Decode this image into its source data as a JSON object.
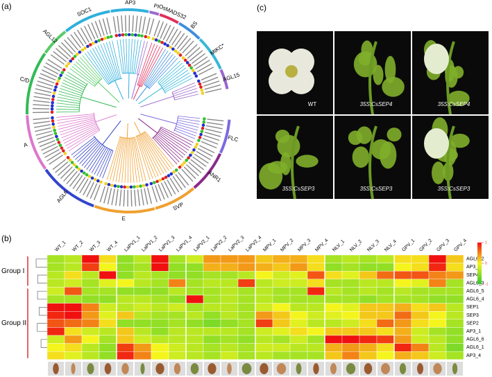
{
  "labels": {
    "a": "(a)",
    "b": "(b)",
    "c": "(c)"
  },
  "tree": {
    "clades": [
      "AP3",
      "PI",
      "OsMADS32",
      "BS",
      "MIKC*",
      "AGL15",
      "FLC",
      "ANR1",
      "SVP",
      "E",
      "AGL6",
      "A",
      "C/D",
      "AGL12",
      "SOC1"
    ]
  },
  "photos": [
    "WT",
    "35S:CsSEP4",
    "35S:CsSEP4",
    "35S:CsSEP3",
    "35S:CsSEP3",
    "35S:CsSEP3"
  ],
  "chart_data": {
    "type": "heatmap",
    "x": [
      "WT_1",
      "WT_2",
      "WT_3",
      "WT_4",
      "LaPV1_1",
      "LaPV1_2",
      "LaPV1_3",
      "LaPV1_4",
      "LaPV2_1",
      "LaPV2_2",
      "LaPV2_3",
      "LaPV2_4",
      "MPV_1",
      "MPV_2",
      "MPV_3",
      "MPV_4",
      "NLV_1",
      "NLV_2",
      "NLV_3",
      "NLV_4",
      "GPV_1",
      "GPV_2",
      "GPV_3",
      "GPV_4"
    ],
    "y": [
      "AGL6_2",
      "AP3_2",
      "SEP4",
      "AGL6_3",
      "AGL6_5",
      "AGL6_4",
      "SEP1",
      "SEP3",
      "SEP2",
      "AP3_1",
      "AGL6_6",
      "AGL6_1",
      "AP3_4"
    ],
    "groups": [
      {
        "name": "Group I",
        "rows": [
          0,
          3
        ]
      },
      {
        "name": "Group II",
        "rows": [
          4,
          12
        ]
      }
    ],
    "values": [
      [
        -0.4,
        -0.3,
        1,
        0.1,
        -0.5,
        -0.3,
        1,
        -0.4,
        -0.2,
        0.4,
        0.4,
        0.4,
        0.2,
        0.3,
        0.3,
        0.1,
        -0.4,
        -0.3,
        -0.4,
        -0.3,
        0.1,
        0.1,
        1,
        0.2
      ],
      [
        -0.4,
        -0.3,
        0.8,
        0,
        -0.5,
        -0.4,
        1,
        -0.5,
        -0.5,
        0.3,
        0.3,
        0.4,
        0.3,
        0.2,
        0.4,
        0.1,
        -0.5,
        -0.4,
        -0.5,
        -0.5,
        0,
        0.1,
        0.9,
        0.1
      ],
      [
        -0.3,
        0.1,
        -0.3,
        1,
        -0.5,
        -0.3,
        -0.4,
        -0.5,
        -0.5,
        -0.4,
        -0.4,
        -0.3,
        0,
        -0.2,
        -0.1,
        0.7,
        0.1,
        -0.1,
        0.2,
        0.6,
        0.7,
        0.7,
        0.5,
        0.4
      ],
      [
        -0.3,
        -0.2,
        -0.4,
        -0.1,
        0,
        -0.3,
        -0.4,
        0.5,
        -0.4,
        -0.3,
        -0.3,
        0.8,
        -0.3,
        -0.2,
        -0.2,
        0.1,
        -0.4,
        -0.4,
        -0.3,
        -0.3,
        0,
        -0.1,
        0.5,
        -0.4
      ],
      [
        -0.2,
        0.7,
        -0.4,
        -0.4,
        -0.5,
        -0.5,
        -0.5,
        -0.3,
        -0.4,
        -0.4,
        -0.3,
        -0.4,
        -0.3,
        -0.4,
        -0.4,
        0.9,
        -0.3,
        -0.4,
        -0.3,
        -0.4,
        -0.3,
        -0.4,
        -0.4,
        -0.4
      ],
      [
        -0.4,
        -0.4,
        -0.5,
        -0.5,
        -0.3,
        -0.3,
        -0.4,
        -0.5,
        1,
        -0.4,
        -0.3,
        -0.4,
        -0.3,
        -0.4,
        -0.4,
        -0.4,
        -0.4,
        -0.4,
        -0.5,
        -0.4,
        -0.4,
        -0.4,
        -0.5,
        -0.5
      ],
      [
        1,
        1,
        0.5,
        -0.2,
        -0.3,
        -0.2,
        -0.3,
        -0.2,
        -0.4,
        -0.3,
        -0.3,
        -0.4,
        -0.2,
        0,
        -0.3,
        -0.3,
        0,
        -0.1,
        0.2,
        0.2,
        0.3,
        0.1,
        0.2,
        -0.3
      ],
      [
        0.9,
        1,
        0.4,
        -0.1,
        0.2,
        -0.3,
        -0.4,
        -0.4,
        -0.3,
        -0.5,
        -0.3,
        -0.4,
        0.4,
        0.2,
        0,
        -0.2,
        -0.1,
        0,
        0.2,
        0.2,
        0.6,
        0.2,
        0,
        -0.3
      ],
      [
        0.7,
        0.6,
        0.5,
        0.1,
        -0.5,
        -0.5,
        -0.5,
        -0.4,
        -0.5,
        -0.6,
        -0.5,
        -0.4,
        0.8,
        0.2,
        -0.1,
        -0.3,
        -0.3,
        -0.2,
        0.1,
        0.6,
        0.4,
        0.1,
        0,
        -0.4
      ],
      [
        0.9,
        0.1,
        -0.2,
        -0.3,
        0.2,
        -0.3,
        -0.5,
        -0.3,
        -0.3,
        -0.3,
        -0.3,
        -0.4,
        -0.2,
        -0.1,
        0.1,
        0,
        0.2,
        0.2,
        0.2,
        0.1,
        0.3,
        -0.2,
        -0.4,
        -0.5
      ],
      [
        -0.2,
        0.4,
        0,
        -0.4,
        0.2,
        -0.2,
        -0.3,
        -0.3,
        -0.3,
        -0.5,
        -0.4,
        -0.5,
        -0.3,
        -0.4,
        -0.2,
        -0.4,
        1,
        1,
        0.9,
        0.8,
        0.4,
        -0.2,
        -0.3,
        -0.5
      ],
      [
        0,
        0.1,
        -0.3,
        -0.5,
        0.8,
        0.4,
        0,
        -0.2,
        -0.3,
        -0.4,
        -0.3,
        -0.4,
        -0.2,
        -0.2,
        -0.3,
        -0.3,
        0.3,
        0.4,
        0.3,
        0.1,
        0.9,
        0.5,
        -0.3,
        -0.6
      ],
      [
        0.1,
        -0.1,
        -0.3,
        -0.5,
        0.9,
        0.5,
        0,
        -0.2,
        -0.3,
        -0.4,
        -0.2,
        -0.4,
        -0.3,
        -0.4,
        -0.4,
        -0.4,
        0.2,
        0.5,
        0.2,
        0,
        0.3,
        0.2,
        -0.2,
        -0.4
      ]
    ],
    "zlim": [
      -1,
      1
    ],
    "zticks": [
      1,
      0,
      -1
    ],
    "colormap": [
      "#2ec82e",
      "#f5f51e",
      "#f01010"
    ]
  }
}
